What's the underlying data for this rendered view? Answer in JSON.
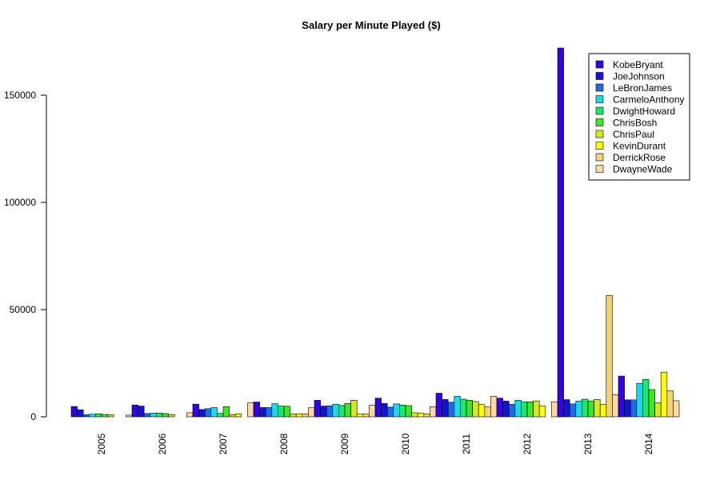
{
  "chart_data": {
    "type": "bar",
    "title": "Salary per Minute Played ($)",
    "xlabel": "",
    "ylabel": "",
    "categories": [
      "2005",
      "2006",
      "2007",
      "2008",
      "2009",
      "2010",
      "2011",
      "2012",
      "2013",
      "2014"
    ],
    "ylim": [
      0,
      172000
    ],
    "yticks": [
      0,
      50000,
      100000,
      150000
    ],
    "ytick_labels": [
      "0",
      "50000",
      "100000",
      "150000"
    ],
    "legend_position": "top-right",
    "grid": false,
    "series": [
      {
        "name": "KobeBryant",
        "color": "#3300EE",
        "values": [
          4800,
          5500,
          5900,
          6900,
          7700,
          8700,
          11000,
          8700,
          172000,
          19000
        ]
      },
      {
        "name": "JoeJohnson",
        "color": "#1414D8",
        "values": [
          3300,
          5000,
          3400,
          4300,
          5000,
          6200,
          8100,
          7300,
          8000,
          7900
        ]
      },
      {
        "name": "LeBronJames",
        "color": "#1E6BE8",
        "values": [
          1000,
          1500,
          3800,
          4300,
          5100,
          4500,
          6800,
          5800,
          6000,
          7900
        ]
      },
      {
        "name": "CarmeloAnthony",
        "color": "#1ED8E8",
        "values": [
          1200,
          1700,
          4300,
          6100,
          5900,
          6000,
          9600,
          7700,
          7300,
          15600
        ]
      },
      {
        "name": "DwightHoward",
        "color": "#1EE86A",
        "values": [
          1400,
          1700,
          1600,
          5000,
          5300,
          5500,
          8200,
          7000,
          8200,
          17400
        ]
      },
      {
        "name": "ChrisBosh",
        "color": "#3DE81E",
        "values": [
          1100,
          1500,
          4700,
          4900,
          6200,
          5200,
          7700,
          7000,
          7400,
          12700
        ]
      },
      {
        "name": "ChrisPaul",
        "color": "#D8E81E",
        "values": [
          1000,
          1000,
          1000,
          1300,
          7700,
          1900,
          7100,
          7400,
          8100,
          6500
        ]
      },
      {
        "name": "KevinDurant",
        "color": "#FFFF00",
        "values": [
          0,
          0,
          1400,
          1400,
          1300,
          1600,
          5700,
          5000,
          5700,
          20800
        ]
      },
      {
        "name": "DerrickRose",
        "color": "#F2D278",
        "values": [
          0,
          0,
          0,
          1400,
          1300,
          1400,
          4600,
          0,
          56600,
          12100
        ]
      },
      {
        "name": "DwayneWade",
        "color": "#FFD8A8",
        "values": [
          800,
          1900,
          6500,
          4200,
          5400,
          4700,
          9600,
          7000,
          10300,
          7500
        ]
      }
    ]
  }
}
